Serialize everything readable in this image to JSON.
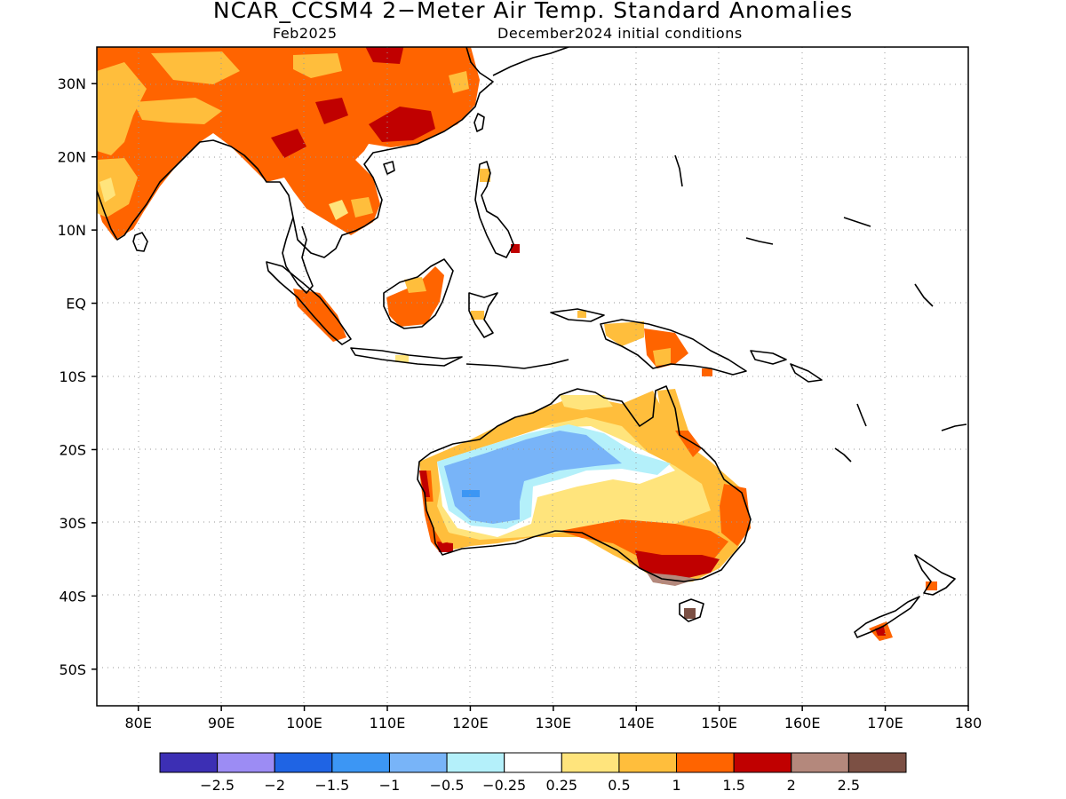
{
  "header": {
    "title": "NCAR_CCSM4 2−Meter Air Temp. Standard Anomalies",
    "valid_month": "Feb2025",
    "init_conditions": "December2024 initial conditions"
  },
  "map": {
    "projection": "lat-lon",
    "lon_range": [
      75,
      180
    ],
    "lat_range": [
      -55,
      35
    ],
    "grid": "dotted",
    "lat_ticks": [
      {
        "value": 30,
        "label": "30N"
      },
      {
        "value": 20,
        "label": "20N"
      },
      {
        "value": 10,
        "label": "10N"
      },
      {
        "value": 0,
        "label": "EQ"
      },
      {
        "value": -10,
        "label": "10S"
      },
      {
        "value": -20,
        "label": "20S"
      },
      {
        "value": -30,
        "label": "30S"
      },
      {
        "value": -40,
        "label": "40S"
      },
      {
        "value": -50,
        "label": "50S"
      }
    ],
    "lon_ticks": [
      {
        "value": 80,
        "label": "80E"
      },
      {
        "value": 90,
        "label": "90E"
      },
      {
        "value": 100,
        "label": "100E"
      },
      {
        "value": 110,
        "label": "110E"
      },
      {
        "value": 120,
        "label": "120E"
      },
      {
        "value": 130,
        "label": "130E"
      },
      {
        "value": 140,
        "label": "140E"
      },
      {
        "value": 150,
        "label": "150E"
      },
      {
        "value": 160,
        "label": "160E"
      },
      {
        "value": 170,
        "label": "170E"
      },
      {
        "value": 180,
        "label": "180"
      }
    ]
  },
  "colorbar": {
    "colors": [
      "#3c2fb4",
      "#9c8cf4",
      "#1f64e4",
      "#3c96f4",
      "#78b4f8",
      "#b4f0fa",
      "#ffffff",
      "#ffe47c",
      "#ffbe3c",
      "#ff6400",
      "#c00000",
      "#b4887c",
      "#7c5044"
    ],
    "labels": [
      "−2.5",
      "−2",
      "−1.5",
      "−1",
      "−0.5",
      "−0.25",
      "0.25",
      "0.5",
      "1",
      "1.5",
      "2",
      "2.5"
    ]
  }
}
